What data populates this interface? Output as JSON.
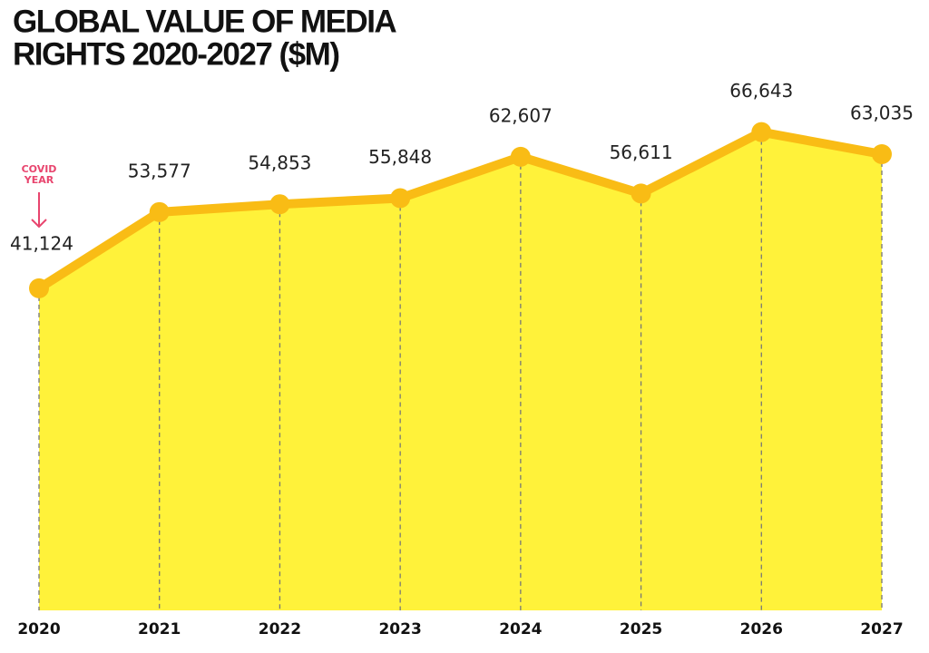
{
  "chart_data": {
    "type": "area-line",
    "title": [
      "GLOBAL VALUE OF MEDIA",
      "RIGHTS 2020-2027 ($M)"
    ],
    "x": [
      2020,
      2021,
      2022,
      2023,
      2024,
      2025,
      2026,
      2027
    ],
    "xlim": [
      2020,
      2027
    ],
    "values": [
      41124,
      53577,
      54853,
      55848,
      62607,
      56611,
      66643,
      63035
    ],
    "value_labels": [
      "41,124",
      "53,577",
      "54,853",
      "55,848",
      "62,607",
      "56,611",
      "66,643",
      "63,035"
    ],
    "ylim": [
      -11500,
      70000
    ],
    "color": "#f9bc15",
    "fill_color": "#fff23a",
    "drop_line_color": "#777777",
    "annotation": {
      "lines": [
        "COVID",
        "YEAR"
      ],
      "color": "#e8456e"
    }
  }
}
